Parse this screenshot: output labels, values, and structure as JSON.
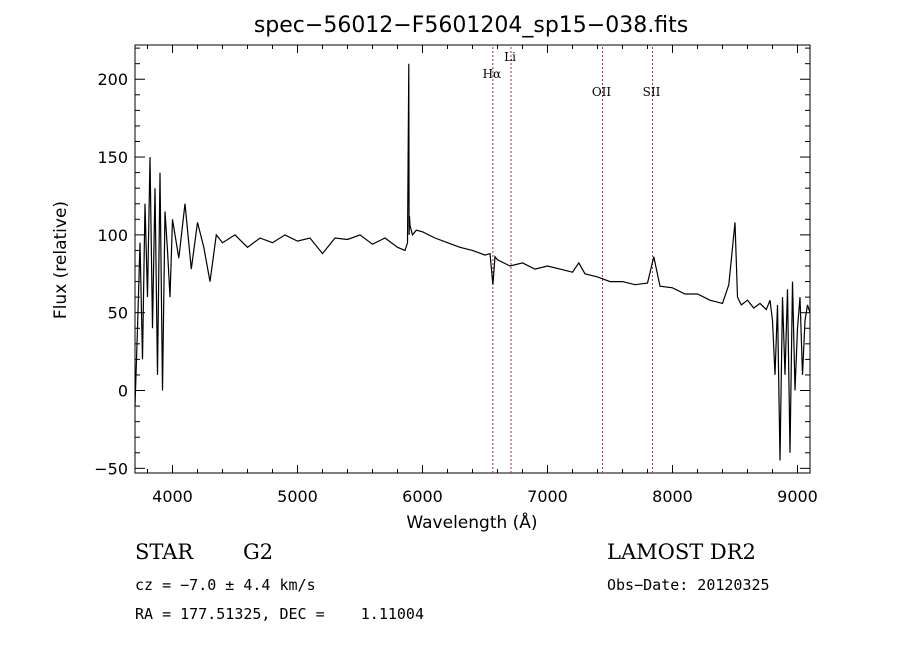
{
  "chart_data": {
    "type": "line",
    "title": "spec−56012−F5601204_sp15−038.fits",
    "xlabel": "Wavelength (Å)",
    "ylabel": "Flux (relative)",
    "xlim": [
      3700,
      9100
    ],
    "ylim": [
      -53,
      222
    ],
    "xticks": [
      4000,
      5000,
      6000,
      7000,
      8000,
      9000
    ],
    "yticks": [
      -50,
      0,
      50,
      100,
      150,
      200
    ],
    "ytick_labels": [
      "−50",
      "0",
      "50",
      "100",
      "150",
      "200"
    ],
    "grid": false,
    "series": [
      {
        "x": [
          3700,
          3720,
          3740,
          3760,
          3780,
          3800,
          3820,
          3840,
          3860,
          3880,
          3900,
          3920,
          3940,
          3960,
          3980,
          4000,
          4050,
          4100,
          4150,
          4200,
          4250,
          4300,
          4350,
          4400,
          4500,
          4600,
          4700,
          4800,
          4900,
          5000,
          5100,
          5200,
          5300,
          5400,
          5500,
          5600,
          5700,
          5800,
          5860,
          5880,
          5890,
          5893,
          5896,
          5900,
          5920,
          5950,
          6000,
          6100,
          6200,
          6300,
          6400,
          6500,
          6540,
          6563,
          6580,
          6600,
          6700,
          6800,
          6900,
          7000,
          7100,
          7200,
          7250,
          7300,
          7400,
          7500,
          7600,
          7700,
          7800,
          7850,
          7900,
          8000,
          8100,
          8200,
          8300,
          8400,
          8450,
          8500,
          8520,
          8550,
          8600,
          8650,
          8700,
          8750,
          8780,
          8800,
          8820,
          8840,
          8860,
          8880,
          8900,
          8920,
          8940,
          8960,
          8980,
          9000,
          9020,
          9040,
          9060,
          9080,
          9100
        ],
        "y": [
          -10,
          40,
          95,
          20,
          120,
          60,
          150,
          40,
          130,
          10,
          140,
          0,
          115,
          90,
          60,
          110,
          85,
          120,
          78,
          108,
          92,
          70,
          100,
          95,
          100,
          92,
          98,
          95,
          100,
          96,
          98,
          88,
          98,
          97,
          100,
          94,
          98,
          92,
          90,
          95,
          210,
          100,
          112,
          106,
          100,
          103,
          102,
          98,
          95,
          92,
          90,
          87,
          88,
          68,
          86,
          84,
          80,
          82,
          78,
          80,
          78,
          76,
          82,
          75,
          73,
          70,
          70,
          68,
          69,
          86,
          67,
          66,
          62,
          62,
          58,
          56,
          68,
          108,
          60,
          55,
          58,
          53,
          56,
          52,
          58,
          45,
          10,
          55,
          -45,
          60,
          10,
          65,
          -40,
          70,
          0,
          40,
          60,
          10,
          45,
          55,
          50
        ]
      }
    ],
    "vlines": [
      {
        "label": "Hα",
        "x": 6563
      },
      {
        "label": "Li",
        "x": 6708
      },
      {
        "label": "OII",
        "x": 7440
      },
      {
        "label": "SII",
        "x": 7840
      }
    ],
    "vline_color": "#b03030"
  },
  "info": {
    "object_class": "STAR",
    "subclass": "G2",
    "survey": "LAMOST DR2",
    "cz": "cz = −7.0 ± 4.4 km/s",
    "obs_date": "Obs−Date: 20120325",
    "coords": "RA = 177.51325, DEC =    1.11004"
  }
}
